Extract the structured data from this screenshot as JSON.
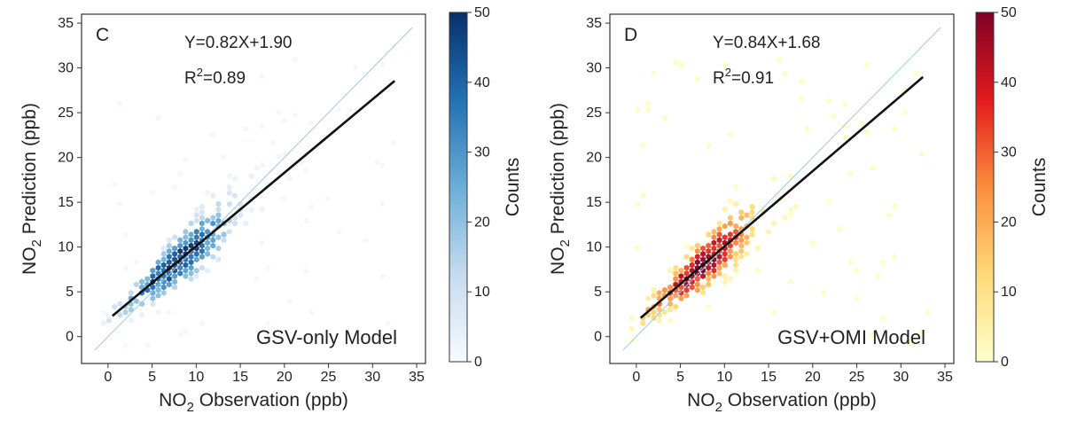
{
  "chart_data": [
    {
      "type": "scatter",
      "panel_label": "C",
      "model_label": "GSV-only Model",
      "equation": "Y=0.82X+1.90",
      "r2_label": "R",
      "r2_sup": "2",
      "r2_value": "=0.89",
      "xlabel": {
        "pre": "NO",
        "sub": "2",
        "post": " Observation (ppb)"
      },
      "ylabel": {
        "pre": "NO",
        "sub": "2",
        "post": " Prediction (ppb)"
      },
      "xlim": [
        -3,
        36
      ],
      "ylim": [
        -3,
        36
      ],
      "xticks": [
        0,
        5,
        10,
        15,
        20,
        25,
        30,
        35
      ],
      "yticks": [
        0,
        5,
        10,
        15,
        20,
        25,
        30,
        35
      ],
      "fit": {
        "slope": 0.82,
        "intercept": 1.9,
        "x_range": [
          0.5,
          32.5
        ]
      },
      "reference_line": "1:1",
      "colorbar": {
        "label": "Counts",
        "min": 0,
        "max": 50,
        "ticks": [
          0,
          10,
          20,
          30,
          40,
          50
        ],
        "colors": [
          "#f7fbff",
          "#c6dbef",
          "#6baed6",
          "#2171b5",
          "#08306b"
        ]
      },
      "density": {
        "peak": [
          8,
          8.5
        ],
        "spread": 3.2,
        "slope": 0.82,
        "intercept": 1.9,
        "max_count": 50
      }
    },
    {
      "type": "scatter",
      "panel_label": "D",
      "model_label": "GSV+OMI Model",
      "equation": "Y=0.84X+1.68",
      "r2_label": "R",
      "r2_sup": "2",
      "r2_value": "=0.91",
      "xlabel": {
        "pre": "NO",
        "sub": "2",
        "post": " Observation (ppb)"
      },
      "ylabel": {
        "pre": "NO",
        "sub": "2",
        "post": " Prediction (ppb)"
      },
      "xlim": [
        -3,
        36
      ],
      "ylim": [
        -3,
        36
      ],
      "xticks": [
        0,
        5,
        10,
        15,
        20,
        25,
        30,
        35
      ],
      "yticks": [
        0,
        5,
        10,
        15,
        20,
        25,
        30,
        35
      ],
      "fit": {
        "slope": 0.84,
        "intercept": 1.68,
        "x_range": [
          0.5,
          32.5
        ]
      },
      "reference_line": "1:1",
      "colorbar": {
        "label": "Counts",
        "min": 0,
        "max": 50,
        "ticks": [
          0,
          10,
          20,
          30,
          40,
          50
        ],
        "colors": [
          "#ffffcc",
          "#fed976",
          "#fd8d3c",
          "#e31a1c",
          "#800026"
        ]
      },
      "density": {
        "peak": [
          7.5,
          7.8
        ],
        "spread": 3.0,
        "slope": 0.84,
        "intercept": 1.68,
        "max_count": 50
      }
    }
  ]
}
